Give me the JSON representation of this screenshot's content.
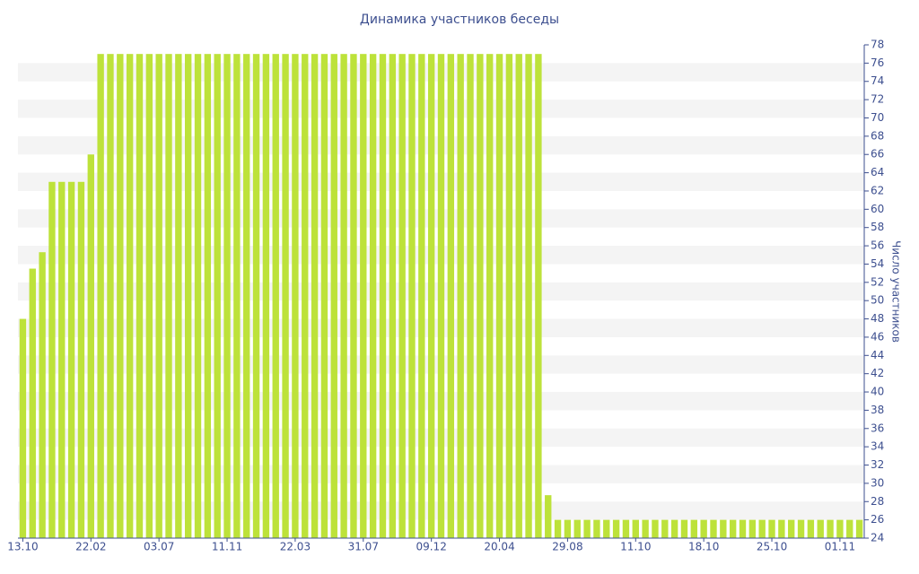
{
  "chart_data": {
    "type": "bar",
    "title": "Динамика участников беседы",
    "y_axis_label": "Число участников",
    "categories": [
      "13.10",
      null,
      null,
      null,
      null,
      null,
      null,
      "22.02",
      null,
      null,
      null,
      null,
      null,
      null,
      "03.07",
      null,
      null,
      null,
      null,
      null,
      null,
      "11.11",
      null,
      null,
      null,
      null,
      null,
      null,
      "22.03",
      null,
      null,
      null,
      null,
      null,
      null,
      "31.07",
      null,
      null,
      null,
      null,
      null,
      null,
      "09.12",
      null,
      null,
      null,
      null,
      null,
      null,
      "20.04",
      null,
      null,
      null,
      null,
      null,
      null,
      "29.08",
      null,
      null,
      null,
      null,
      null,
      null,
      "11.10",
      null,
      null,
      null,
      null,
      null,
      null,
      "18.10",
      null,
      null,
      null,
      null,
      null,
      null,
      "25.10",
      null,
      null,
      null,
      null,
      null,
      null,
      "01.11",
      null,
      null
    ],
    "values": [
      48,
      53.5,
      55.3,
      63,
      63,
      63,
      63,
      66,
      77,
      77,
      77,
      77,
      77,
      77,
      77,
      77,
      77,
      77,
      77,
      77,
      77,
      77,
      77,
      77,
      77,
      77,
      77,
      77,
      77,
      77,
      77,
      77,
      77,
      77,
      77,
      77,
      77,
      77,
      77,
      77,
      77,
      77,
      77,
      77,
      77,
      77,
      77,
      77,
      77,
      77,
      77,
      77,
      77,
      77,
      28.7,
      26,
      26,
      26,
      26,
      26,
      26,
      26,
      26,
      26,
      26,
      26,
      26,
      26,
      26,
      26,
      26,
      26,
      26,
      26,
      26,
      26,
      26,
      26,
      26,
      26,
      26,
      26,
      26,
      26,
      26,
      26,
      26
    ],
    "color": "#bde23a",
    "ylim": [
      24,
      78
    ],
    "yticks": [
      24,
      26,
      28,
      30,
      32,
      34,
      36,
      38,
      40,
      42,
      44,
      46,
      48,
      50,
      52,
      54,
      56,
      58,
      60,
      62,
      64,
      66,
      68,
      70,
      72,
      74,
      76,
      78
    ],
    "grid": "alternating-bands",
    "y_axis_side": "right"
  }
}
